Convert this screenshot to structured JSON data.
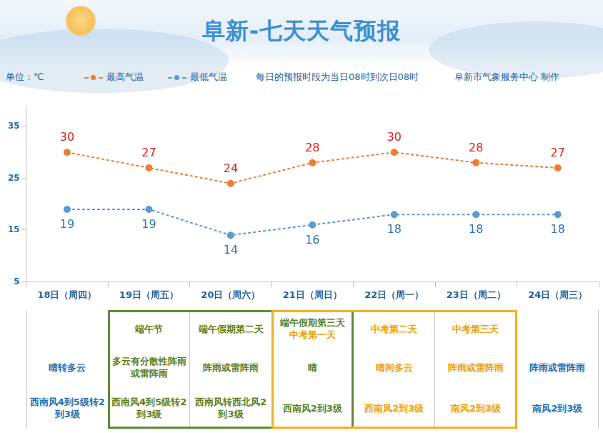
{
  "header": {
    "title": "阜新-七天天气预报",
    "unit": "单位：℃",
    "note": "每日的预报时段为当日08时到次日08时",
    "source": "阜新市气象服务中心 制作"
  },
  "chart_data": {
    "type": "line",
    "categories": [
      "18日（周四）",
      "19日（周五）",
      "20日（周六）",
      "21日（周日）",
      "22日（周一）",
      "23日（周二）",
      "24日（周三）"
    ],
    "series": [
      {
        "name": "最高气温",
        "color": "#ED7D31",
        "values": [
          30,
          27,
          24,
          28,
          30,
          28,
          27
        ],
        "marker": "circle",
        "line_style": "dashed"
      },
      {
        "name": "最低气温",
        "color": "#5B9BD5",
        "values": [
          19,
          19,
          14,
          16,
          18,
          18,
          18
        ],
        "marker": "circle",
        "line_style": "dashed"
      }
    ],
    "ylim": [
      5,
      39
    ],
    "yticks": [
      5,
      15,
      25,
      35
    ],
    "grid": false,
    "legend": "top",
    "data_labels": true
  },
  "table": {
    "rows": [
      [
        null,
        "端午节",
        "端午假期第二天",
        [
          "端午假期第三天",
          "中考第一天"
        ],
        "中考第二天",
        "中考第三天",
        null
      ],
      [
        "晴转多云",
        "多云有分散性阵雨或雷阵雨",
        "阵雨或雷阵雨",
        "晴",
        "晴间多云",
        "阵雨或雷阵雨",
        "阵雨或雷阵雨"
      ],
      [
        "西南风4到5级转2到3级",
        "西南风4到5级转2到3级",
        "西南风转西北风2到3级",
        "西南风2到3级",
        "西南风2到3级",
        "南风2到3级",
        "南风2到3级"
      ]
    ]
  }
}
